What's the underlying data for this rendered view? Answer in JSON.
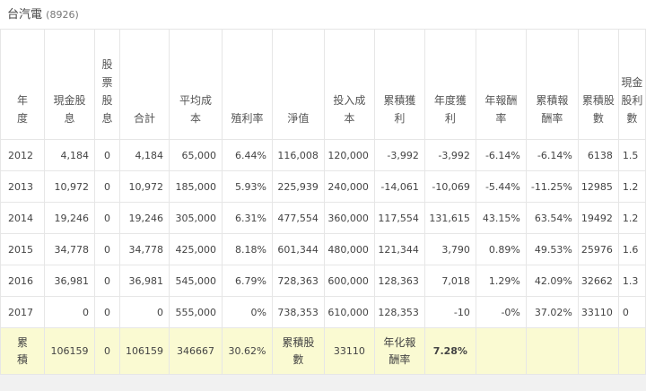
{
  "title": {
    "name": "台汽電",
    "code": "(8926)"
  },
  "headers": [
    "年度",
    "現金股息",
    "股票股息",
    "合計",
    "平均成本",
    "殖利率",
    "淨值",
    "投入成本",
    "累積獲利",
    "年度獲利",
    "年報酬率",
    "累積報酬率",
    "累積股數",
    "現金股利數"
  ],
  "rows": [
    [
      "2012",
      "4,184",
      "0",
      "4,184",
      "65,000",
      "6.44%",
      "116,008",
      "120,000",
      "-3,992",
      "-3,992",
      "-6.14%",
      "-6.14%",
      "6138",
      "1.5"
    ],
    [
      "2013",
      "10,972",
      "0",
      "10,972",
      "185,000",
      "5.93%",
      "225,939",
      "240,000",
      "-14,061",
      "-10,069",
      "-5.44%",
      "-11.25%",
      "12985",
      "1.2"
    ],
    [
      "2014",
      "19,246",
      "0",
      "19,246",
      "305,000",
      "6.31%",
      "477,554",
      "360,000",
      "117,554",
      "131,615",
      "43.15%",
      "63.54%",
      "19492",
      "1.2"
    ],
    [
      "2015",
      "34,778",
      "0",
      "34,778",
      "425,000",
      "8.18%",
      "601,344",
      "480,000",
      "121,344",
      "3,790",
      "0.89%",
      "49.53%",
      "25976",
      "1.6"
    ],
    [
      "2016",
      "36,981",
      "0",
      "36,981",
      "545,000",
      "6.79%",
      "728,363",
      "600,000",
      "128,363",
      "7,018",
      "1.29%",
      "42.09%",
      "32662",
      "1.3"
    ],
    [
      "2017",
      "0",
      "0",
      "0",
      "555,000",
      "0%",
      "738,353",
      "610,000",
      "128,353",
      "-10",
      "-0%",
      "37.02%",
      "33110",
      "0"
    ]
  ],
  "totals": {
    "label": "累積",
    "cash_dividend": "106159",
    "stock_dividend": "0",
    "sum": "106159",
    "avg_cost": "346667",
    "yield": "30.62%",
    "shares_label": "累積股數",
    "shares": "33110",
    "annualized_label": "年化報酬率",
    "annualized": "7.28%"
  },
  "colors": {
    "total_row_bg": "#fafad2",
    "highlight_red": "#e0202a"
  }
}
